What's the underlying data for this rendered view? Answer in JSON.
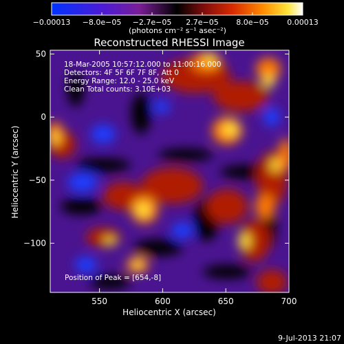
{
  "chart_data": {
    "type": "heatmap",
    "title": "Reconstructed RHESSI Image",
    "xlabel": "Heliocentric X (arcsec)",
    "ylabel": "Heliocentric Y (arcsec)",
    "xlim": [
      511,
      700
    ],
    "ylim": [
      -139,
      53
    ],
    "xticks": [
      550,
      600,
      650,
      700
    ],
    "xtick_labels": [
      "550",
      "600",
      "650",
      "700"
    ],
    "yticks": [
      50,
      0,
      -50,
      -100
    ],
    "ytick_labels": [
      "50",
      "0",
      "−50",
      "−100"
    ],
    "colorbar": {
      "range": [
        -0.00013,
        0.00013
      ],
      "tick_labels": [
        "−0.00013",
        "−8.0e−05",
        "−2.7e−05",
        "2.7e−05",
        "8.0e−05",
        "0.00013"
      ],
      "units_label": "(photons cm⁻² s⁻¹ asec⁻²)",
      "colormap": [
        "#0033ff",
        "#4b1bd6",
        "#7a1e96",
        "#000000",
        "#7a0c0c",
        "#d82a00",
        "#ff8a00",
        "#ffe33a",
        "#ffffff"
      ]
    },
    "info_lines": [
      "18-Mar-2005 10:57:12.000 to 11:00:16.000",
      "Detectors: 4F 5F 6F 7F 8F, Att 0",
      "Energy Range: 12.0 - 25.0 keV",
      "Clean     Total counts: 3.10E+03"
    ],
    "peak_label": "Position of Peak = [654,-8]",
    "peak_position": [
      654,
      -8
    ],
    "colors": {
      "background": "#000000",
      "text": "#ffffff"
    }
  },
  "footer": {
    "timestamp": "9-Jul-2013 21:07"
  }
}
